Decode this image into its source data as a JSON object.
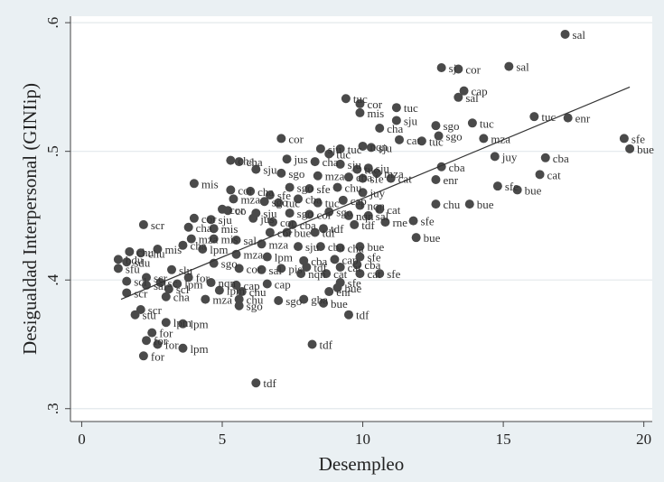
{
  "chart_data": {
    "type": "scatter",
    "title": "",
    "xlabel": "Desempleo",
    "ylabel": "Desigualdad Interpersonal (GINIip)",
    "xlim": [
      -0.4,
      20.3
    ],
    "ylim": [
      0.29,
      0.605
    ],
    "xticks": [
      0,
      5,
      10,
      15,
      20
    ],
    "xtick_labels": [
      "0",
      "5",
      "10",
      "15",
      "20"
    ],
    "yticks": [
      0.3,
      0.4,
      0.5,
      0.6
    ],
    "ytick_labels": [
      ".3",
      ".4",
      ".5",
      ".6"
    ],
    "grid": true,
    "legend": "none",
    "fit_line": {
      "x": [
        1.4,
        19.5
      ],
      "y": [
        0.385,
        0.55
      ]
    },
    "colors": {
      "background": "#eaf0f3",
      "plot_bg": "#ffffff",
      "marker": "#4a4a4a",
      "line": "#333333",
      "grid": "#e3e8eb"
    },
    "points": [
      {
        "x": 17.2,
        "y": 0.591,
        "label": "sal"
      },
      {
        "x": 15.2,
        "y": 0.566,
        "label": "sal"
      },
      {
        "x": 12.8,
        "y": 0.565,
        "label": "sj"
      },
      {
        "x": 13.4,
        "y": 0.564,
        "label": "cor"
      },
      {
        "x": 13.6,
        "y": 0.547,
        "label": "cap"
      },
      {
        "x": 13.4,
        "y": 0.542,
        "label": "sal"
      },
      {
        "x": 9.4,
        "y": 0.541,
        "label": "tuc"
      },
      {
        "x": 9.9,
        "y": 0.537,
        "label": "cor"
      },
      {
        "x": 11.2,
        "y": 0.534,
        "label": "tuc"
      },
      {
        "x": 9.9,
        "y": 0.53,
        "label": "mis"
      },
      {
        "x": 16.1,
        "y": 0.527,
        "label": "tuc"
      },
      {
        "x": 17.3,
        "y": 0.526,
        "label": "enr"
      },
      {
        "x": 11.2,
        "y": 0.524,
        "label": "sju"
      },
      {
        "x": 13.9,
        "y": 0.522,
        "label": "tuc"
      },
      {
        "x": 12.6,
        "y": 0.52,
        "label": "sgo"
      },
      {
        "x": 10.6,
        "y": 0.518,
        "label": "cha"
      },
      {
        "x": 12.7,
        "y": 0.512,
        "label": "sgo"
      },
      {
        "x": 14.3,
        "y": 0.51,
        "label": "mza"
      },
      {
        "x": 7.1,
        "y": 0.51,
        "label": "cor"
      },
      {
        "x": 11.3,
        "y": 0.509,
        "label": "cat"
      },
      {
        "x": 12.1,
        "y": 0.508,
        "label": "tuc"
      },
      {
        "x": 19.3,
        "y": 0.51,
        "label": "sfe"
      },
      {
        "x": 19.5,
        "y": 0.502,
        "label": "bue"
      },
      {
        "x": 14.7,
        "y": 0.496,
        "label": "juy"
      },
      {
        "x": 16.5,
        "y": 0.495,
        "label": "cba"
      },
      {
        "x": 12.8,
        "y": 0.488,
        "label": "cba"
      },
      {
        "x": 16.3,
        "y": 0.482,
        "label": "cat"
      },
      {
        "x": 12.6,
        "y": 0.478,
        "label": "enr"
      },
      {
        "x": 14.8,
        "y": 0.473,
        "label": "sfe"
      },
      {
        "x": 15.5,
        "y": 0.47,
        "label": "bue"
      },
      {
        "x": 12.6,
        "y": 0.459,
        "label": "chu"
      },
      {
        "x": 13.8,
        "y": 0.459,
        "label": "bue"
      },
      {
        "x": 9.2,
        "y": 0.502,
        "label": "tuc"
      },
      {
        "x": 10.0,
        "y": 0.504,
        "label": "nqn"
      },
      {
        "x": 10.3,
        "y": 0.503,
        "label": "sju"
      },
      {
        "x": 8.5,
        "y": 0.502,
        "label": "sju"
      },
      {
        "x": 8.8,
        "y": 0.498,
        "label": "tuc"
      },
      {
        "x": 7.3,
        "y": 0.494,
        "label": "jus"
      },
      {
        "x": 8.3,
        "y": 0.492,
        "label": "cha"
      },
      {
        "x": 9.2,
        "y": 0.49,
        "label": "sju"
      },
      {
        "x": 5.3,
        "y": 0.493,
        "label": "cha"
      },
      {
        "x": 5.6,
        "y": 0.492,
        "label": "cha"
      },
      {
        "x": 6.2,
        "y": 0.486,
        "label": "sju"
      },
      {
        "x": 7.1,
        "y": 0.483,
        "label": "sgo"
      },
      {
        "x": 8.4,
        "y": 0.481,
        "label": "mza"
      },
      {
        "x": 9.5,
        "y": 0.48,
        "label": "cba"
      },
      {
        "x": 10.0,
        "y": 0.479,
        "label": "sfe"
      },
      {
        "x": 10.5,
        "y": 0.483,
        "label": "mza"
      },
      {
        "x": 11.0,
        "y": 0.479,
        "label": "cat"
      },
      {
        "x": 9.8,
        "y": 0.486,
        "label": "tuc"
      },
      {
        "x": 10.2,
        "y": 0.487,
        "label": "sju"
      },
      {
        "x": 4.0,
        "y": 0.475,
        "label": "mis"
      },
      {
        "x": 7.4,
        "y": 0.472,
        "label": "sgo"
      },
      {
        "x": 8.1,
        "y": 0.471,
        "label": "sfe"
      },
      {
        "x": 9.1,
        "y": 0.472,
        "label": "chu"
      },
      {
        "x": 10.0,
        "y": 0.468,
        "label": "juy"
      },
      {
        "x": 5.3,
        "y": 0.47,
        "label": "cor"
      },
      {
        "x": 6.0,
        "y": 0.469,
        "label": "cha"
      },
      {
        "x": 6.7,
        "y": 0.466,
        "label": "sfe"
      },
      {
        "x": 5.4,
        "y": 0.463,
        "label": "mza"
      },
      {
        "x": 6.5,
        "y": 0.461,
        "label": "sgo"
      },
      {
        "x": 7.0,
        "y": 0.46,
        "label": "tuc"
      },
      {
        "x": 7.7,
        "y": 0.463,
        "label": "cba"
      },
      {
        "x": 8.4,
        "y": 0.46,
        "label": "tuc"
      },
      {
        "x": 9.3,
        "y": 0.462,
        "label": "cap"
      },
      {
        "x": 9.9,
        "y": 0.458,
        "label": "nqn"
      },
      {
        "x": 10.6,
        "y": 0.455,
        "label": "cat"
      },
      {
        "x": 5.0,
        "y": 0.455,
        "label": "cor"
      },
      {
        "x": 5.2,
        "y": 0.454,
        "label": "co"
      },
      {
        "x": 6.2,
        "y": 0.452,
        "label": "sju"
      },
      {
        "x": 7.4,
        "y": 0.452,
        "label": "sgo"
      },
      {
        "x": 8.1,
        "y": 0.451,
        "label": "cor"
      },
      {
        "x": 8.8,
        "y": 0.453,
        "label": "sgo"
      },
      {
        "x": 9.5,
        "y": 0.45,
        "label": "nqn"
      },
      {
        "x": 10.2,
        "y": 0.45,
        "label": "sal"
      },
      {
        "x": 4.0,
        "y": 0.448,
        "label": "cor"
      },
      {
        "x": 4.6,
        "y": 0.447,
        "label": "sju"
      },
      {
        "x": 11.8,
        "y": 0.446,
        "label": "sfe"
      },
      {
        "x": 10.8,
        "y": 0.445,
        "label": "rne"
      },
      {
        "x": 6.1,
        "y": 0.448,
        "label": "jus"
      },
      {
        "x": 6.8,
        "y": 0.445,
        "label": "cor"
      },
      {
        "x": 7.5,
        "y": 0.443,
        "label": "cba"
      },
      {
        "x": 9.7,
        "y": 0.443,
        "label": "tdf"
      },
      {
        "x": 3.8,
        "y": 0.441,
        "label": "cha"
      },
      {
        "x": 4.7,
        "y": 0.44,
        "label": "mis"
      },
      {
        "x": 8.6,
        "y": 0.44,
        "label": "tdf"
      },
      {
        "x": 11.9,
        "y": 0.433,
        "label": "bue"
      },
      {
        "x": 2.2,
        "y": 0.443,
        "label": "scr"
      },
      {
        "x": 6.7,
        "y": 0.437,
        "label": "cor"
      },
      {
        "x": 7.3,
        "y": 0.437,
        "label": "bue"
      },
      {
        "x": 8.3,
        "y": 0.437,
        "label": "tdf"
      },
      {
        "x": 3.9,
        "y": 0.432,
        "label": "mza"
      },
      {
        "x": 4.7,
        "y": 0.432,
        "label": "mis"
      },
      {
        "x": 5.5,
        "y": 0.431,
        "label": "sal"
      },
      {
        "x": 6.4,
        "y": 0.428,
        "label": "mza"
      },
      {
        "x": 7.7,
        "y": 0.426,
        "label": "sju"
      },
      {
        "x": 8.5,
        "y": 0.426,
        "label": "cba"
      },
      {
        "x": 9.2,
        "y": 0.425,
        "label": "cha"
      },
      {
        "x": 9.9,
        "y": 0.426,
        "label": "bue"
      },
      {
        "x": 3.6,
        "y": 0.427,
        "label": "cha"
      },
      {
        "x": 2.7,
        "y": 0.424,
        "label": "mis"
      },
      {
        "x": 1.7,
        "y": 0.422,
        "label": "chu"
      },
      {
        "x": 2.1,
        "y": 0.421,
        "label": "chu"
      },
      {
        "x": 4.3,
        "y": 0.424,
        "label": "lpm"
      },
      {
        "x": 5.5,
        "y": 0.42,
        "label": "mza"
      },
      {
        "x": 6.6,
        "y": 0.418,
        "label": "lpm"
      },
      {
        "x": 7.9,
        "y": 0.415,
        "label": "cba"
      },
      {
        "x": 9.0,
        "y": 0.416,
        "label": "cap"
      },
      {
        "x": 9.9,
        "y": 0.418,
        "label": "sfe"
      },
      {
        "x": 1.3,
        "y": 0.416,
        "label": "bdu"
      },
      {
        "x": 1.6,
        "y": 0.414,
        "label": "sdu"
      },
      {
        "x": 4.7,
        "y": 0.413,
        "label": "sgo"
      },
      {
        "x": 5.6,
        "y": 0.409,
        "label": "cor"
      },
      {
        "x": 6.4,
        "y": 0.408,
        "label": "sal"
      },
      {
        "x": 7.1,
        "y": 0.409,
        "label": "pis"
      },
      {
        "x": 8.0,
        "y": 0.41,
        "label": "tdf"
      },
      {
        "x": 9.2,
        "y": 0.41,
        "label": "cat"
      },
      {
        "x": 9.8,
        "y": 0.412,
        "label": "cba"
      },
      {
        "x": 1.3,
        "y": 0.409,
        "label": "sfu"
      },
      {
        "x": 3.2,
        "y": 0.408,
        "label": "slu"
      },
      {
        "x": 7.8,
        "y": 0.405,
        "label": "nqn"
      },
      {
        "x": 8.7,
        "y": 0.405,
        "label": "cat"
      },
      {
        "x": 10.6,
        "y": 0.405,
        "label": "sfe"
      },
      {
        "x": 2.3,
        "y": 0.402,
        "label": "scr"
      },
      {
        "x": 3.8,
        "y": 0.402,
        "label": "for"
      },
      {
        "x": 9.9,
        "y": 0.405,
        "label": "cat"
      },
      {
        "x": 1.6,
        "y": 0.399,
        "label": "scl"
      },
      {
        "x": 2.8,
        "y": 0.398,
        "label": "sc"
      },
      {
        "x": 3.4,
        "y": 0.397,
        "label": "lpm"
      },
      {
        "x": 4.6,
        "y": 0.398,
        "label": "nqn"
      },
      {
        "x": 5.5,
        "y": 0.396,
        "label": "cap"
      },
      {
        "x": 6.6,
        "y": 0.397,
        "label": "cap"
      },
      {
        "x": 9.2,
        "y": 0.398,
        "label": "sfe"
      },
      {
        "x": 2.3,
        "y": 0.396,
        "label": "sal"
      },
      {
        "x": 3.1,
        "y": 0.393,
        "label": "scl"
      },
      {
        "x": 4.9,
        "y": 0.392,
        "label": "lpm"
      },
      {
        "x": 5.7,
        "y": 0.391,
        "label": "chu"
      },
      {
        "x": 8.8,
        "y": 0.391,
        "label": "enr"
      },
      {
        "x": 9.1,
        "y": 0.394,
        "label": "bue"
      },
      {
        "x": 1.6,
        "y": 0.39,
        "label": "scr"
      },
      {
        "x": 3.0,
        "y": 0.387,
        "label": "cha"
      },
      {
        "x": 4.4,
        "y": 0.385,
        "label": "mza"
      },
      {
        "x": 5.6,
        "y": 0.385,
        "label": "chu"
      },
      {
        "x": 7.0,
        "y": 0.384,
        "label": "sgo"
      },
      {
        "x": 7.9,
        "y": 0.385,
        "label": "gba"
      },
      {
        "x": 8.6,
        "y": 0.382,
        "label": "bue"
      },
      {
        "x": 5.6,
        "y": 0.38,
        "label": "sgo"
      },
      {
        "x": 2.1,
        "y": 0.377,
        "label": "scr"
      },
      {
        "x": 1.9,
        "y": 0.373,
        "label": "stu"
      },
      {
        "x": 9.5,
        "y": 0.373,
        "label": "tdf"
      },
      {
        "x": 3.0,
        "y": 0.367,
        "label": "lpm"
      },
      {
        "x": 3.6,
        "y": 0.366,
        "label": "lpm"
      },
      {
        "x": 2.5,
        "y": 0.359,
        "label": "for"
      },
      {
        "x": 2.3,
        "y": 0.353,
        "label": "for"
      },
      {
        "x": 2.7,
        "y": 0.35,
        "label": "for"
      },
      {
        "x": 3.6,
        "y": 0.347,
        "label": "lpm"
      },
      {
        "x": 8.2,
        "y": 0.35,
        "label": "tdf"
      },
      {
        "x": 2.2,
        "y": 0.341,
        "label": "for"
      },
      {
        "x": 6.2,
        "y": 0.32,
        "label": "tdf"
      }
    ]
  }
}
